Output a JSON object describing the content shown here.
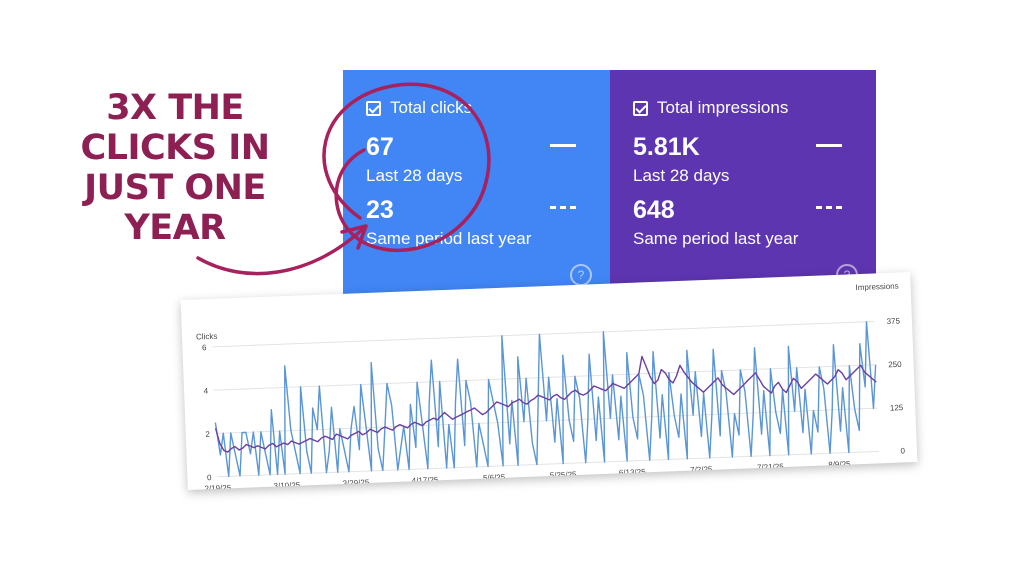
{
  "headline": {
    "lines": [
      "3X THE",
      "CLICKS IN",
      "JUST ONE",
      "YEAR"
    ]
  },
  "clicks": {
    "title": "Total clicks",
    "current_value": "67",
    "current_label": "Last 28 days",
    "previous_value": "23",
    "previous_label": "Same period last year",
    "help_glyph": "?",
    "color": "#4285f4"
  },
  "impressions": {
    "title": "Total impressions",
    "current_value": "5.81K",
    "current_label": "Last 28 days",
    "previous_value": "648",
    "previous_label": "Same period last year",
    "help_glyph": "?",
    "color": "#5e35b1"
  },
  "accent_color": "#8e1f52",
  "chart_data": {
    "type": "line",
    "left_axis_label": "Clicks",
    "right_axis_label": "Impressions",
    "left_ticks": [
      "0",
      "2",
      "4",
      "6"
    ],
    "left_range": [
      0,
      6
    ],
    "right_ticks": [
      "0",
      "125",
      "250",
      "375"
    ],
    "right_range": [
      0,
      375
    ],
    "x_ticks": [
      "2/19/25",
      "3/10/25",
      "3/29/25",
      "4/17/25",
      "5/6/25",
      "5/25/25",
      "6/13/25",
      "7/2/25",
      "7/21/25",
      "8/9/25"
    ],
    "grid": true,
    "series": [
      {
        "name": "Clicks",
        "axis": "left",
        "color": "#5a95d6",
        "values": [
          2.5,
          1,
          2,
          0,
          2,
          1,
          0,
          2,
          2,
          1,
          2,
          0,
          2,
          1,
          0,
          3,
          0,
          2,
          0,
          5,
          2,
          1,
          0,
          4,
          1,
          0,
          3,
          2,
          4,
          0,
          1,
          3,
          0,
          2,
          1,
          0,
          2,
          3,
          1,
          4,
          2,
          0,
          5,
          1,
          0,
          2,
          4,
          3,
          0,
          1,
          2,
          0,
          3,
          1,
          4,
          2,
          0,
          3,
          5,
          1,
          4,
          0,
          2,
          0,
          3,
          5,
          1,
          4,
          3,
          0,
          2,
          1,
          0,
          4,
          3,
          2,
          0,
          6,
          1,
          3,
          0,
          5,
          2,
          4,
          1,
          0,
          3,
          6,
          2,
          4,
          1,
          3,
          0,
          5,
          2,
          1,
          4,
          3,
          0,
          2,
          5,
          1,
          3,
          0,
          6,
          2,
          4,
          1,
          3,
          0,
          5,
          2,
          1,
          4,
          3,
          0,
          2,
          5,
          1,
          3,
          0,
          4,
          2,
          1,
          3,
          0,
          5,
          2,
          4,
          1,
          3,
          0,
          2,
          5,
          1,
          4,
          3,
          0,
          2,
          1,
          4,
          3,
          0,
          2,
          5,
          1,
          3,
          0,
          4,
          2,
          1,
          3,
          0,
          5,
          2,
          4,
          1,
          3,
          0,
          2,
          1,
          4,
          3,
          0,
          2,
          5,
          1,
          3,
          0,
          4,
          2,
          1,
          5,
          3,
          6,
          2,
          4
        ]
      },
      {
        "name": "Impressions",
        "axis": "right",
        "color": "#6a3fa0",
        "values": [
          140,
          95,
          75,
          70,
          80,
          85,
          75,
          80,
          90,
          85,
          80,
          85,
          80,
          75,
          85,
          90,
          80,
          85,
          90,
          85,
          95,
          90,
          85,
          90,
          95,
          100,
          95,
          90,
          100,
          105,
          100,
          95,
          110,
          105,
          100,
          95,
          105,
          110,
          115,
          105,
          110,
          120,
          115,
          110,
          120,
          125,
          120,
          115,
          125,
          130,
          125,
          120,
          130,
          135,
          130,
          125,
          135,
          140,
          145,
          140,
          150,
          160,
          150,
          140,
          145,
          150,
          155,
          160,
          165,
          170,
          160,
          150,
          155,
          165,
          175,
          185,
          180,
          175,
          170,
          180,
          185,
          190,
          180,
          175,
          185,
          190,
          200,
          195,
          190,
          185,
          195,
          200,
          190,
          185,
          195,
          205,
          210,
          200,
          195,
          200,
          210,
          220,
          215,
          210,
          205,
          215,
          225,
          220,
          215,
          210,
          220,
          230,
          240,
          250,
          300,
          270,
          240,
          220,
          230,
          260,
          250,
          230,
          220,
          240,
          270,
          250,
          235,
          220,
          210,
          200,
          190,
          200,
          210,
          220,
          230,
          210,
          200,
          190,
          180,
          190,
          200,
          210,
          220,
          230,
          240,
          220,
          200,
          190,
          180,
          200,
          210,
          190,
          180,
          200,
          220,
          210,
          190,
          200,
          210,
          220,
          230,
          220,
          210,
          200,
          210,
          220,
          240,
          230,
          210,
          220,
          230,
          240,
          250,
          230,
          220,
          210,
          200
        ]
      }
    ]
  }
}
